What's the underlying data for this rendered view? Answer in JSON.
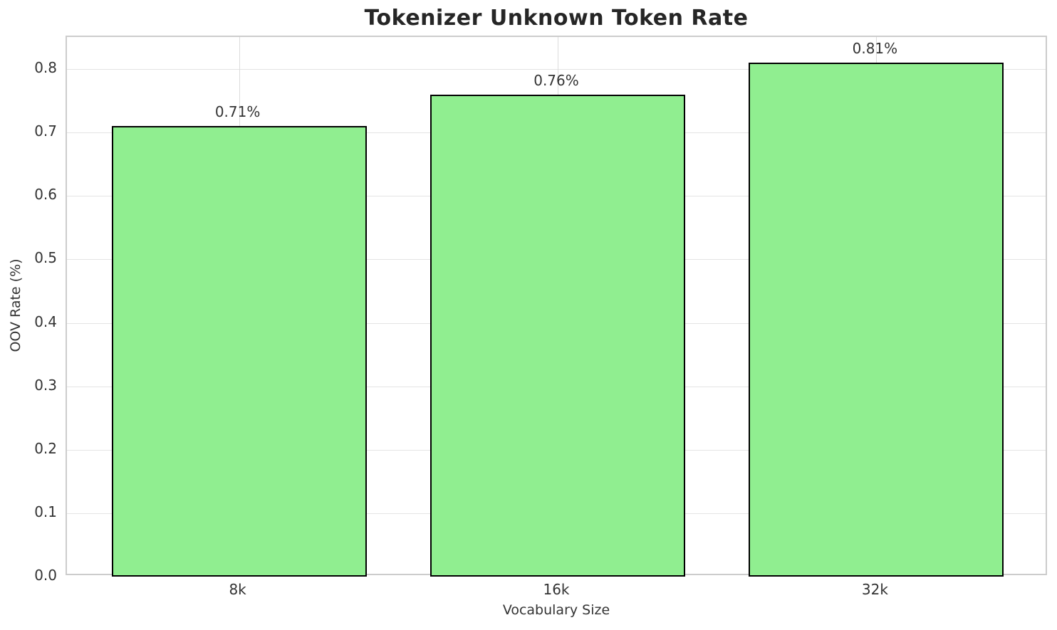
{
  "chart_data": {
    "type": "bar",
    "title": "Tokenizer Unknown Token Rate",
    "xlabel": "Vocabulary Size",
    "ylabel": "OOV Rate (%)",
    "categories": [
      "8k",
      "16k",
      "32k"
    ],
    "values": [
      0.71,
      0.76,
      0.81
    ],
    "bar_labels": [
      "0.71%",
      "0.76%",
      "0.81%"
    ],
    "ylim": [
      0,
      0.8505
    ],
    "yticks": [
      0.0,
      0.1,
      0.2,
      0.3,
      0.4,
      0.5,
      0.6,
      0.7,
      0.8
    ],
    "ytick_labels": [
      "0.0",
      "0.1",
      "0.2",
      "0.3",
      "0.4",
      "0.5",
      "0.6",
      "0.7",
      "0.8"
    ],
    "grid": true,
    "legend": "none",
    "bar_color": "#90EE90",
    "bar_edge_color": "#000000",
    "grid_color_h": "#e4e4e4",
    "grid_color_v": "#dcdcdc",
    "spine_color": "#cccccc",
    "title_color": "#262626",
    "text_color": "#333333",
    "background_color": "#ffffff"
  }
}
